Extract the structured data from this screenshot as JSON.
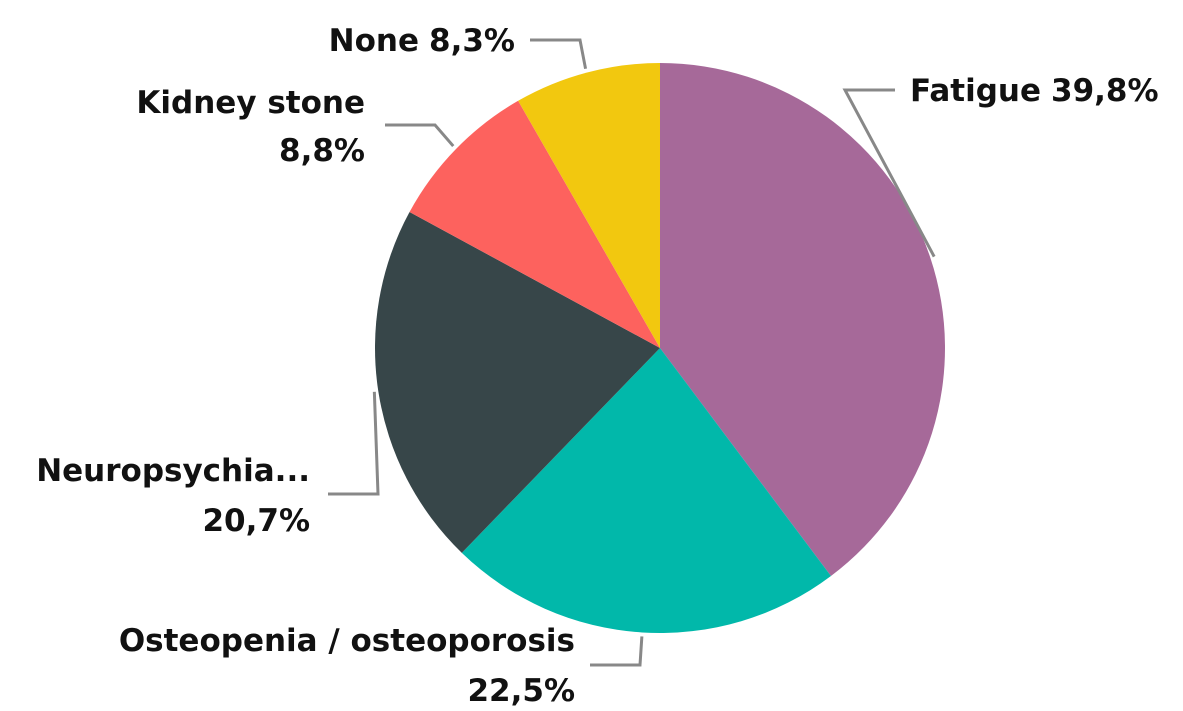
{
  "chart_data": {
    "type": "pie",
    "categories": [
      "Fatigue",
      "Osteopenia / osteoporosis",
      "Neuropsychia...",
      "Kidney stone",
      "None"
    ],
    "values": [
      39.8,
      22.5,
      20.7,
      8.8,
      8.3
    ],
    "value_labels": [
      "39,8%",
      "22,5%",
      "20,7%",
      "8,8%",
      "8,3%"
    ],
    "colors": [
      "#a66999",
      "#01b8aa",
      "#374649",
      "#fd625e",
      "#f2c80f"
    ]
  }
}
